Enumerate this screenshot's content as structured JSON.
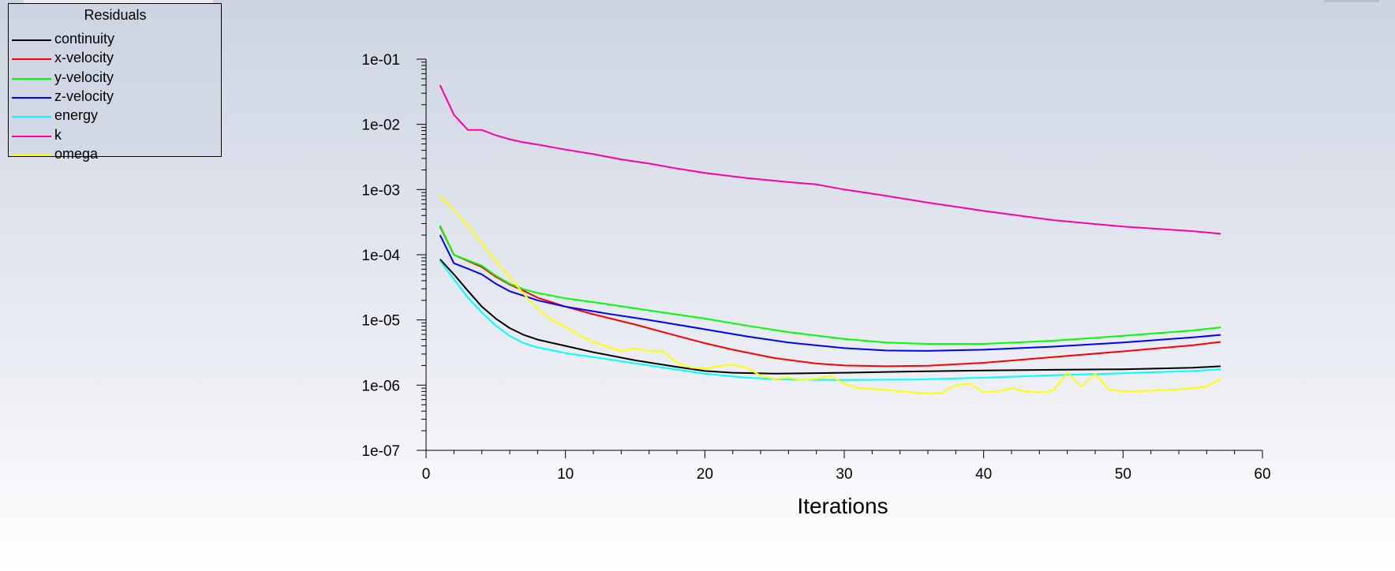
{
  "window": {
    "title": "Residuals"
  },
  "legend": {
    "title": "Residuals",
    "items": [
      {
        "label": "continuity",
        "color": "#000000"
      },
      {
        "label": "x-velocity",
        "color": "#ff0000"
      },
      {
        "label": "y-velocity",
        "color": "#00ff00"
      },
      {
        "label": "z-velocity",
        "color": "#0000ff"
      },
      {
        "label": "energy",
        "color": "#00ffff"
      },
      {
        "label": "k",
        "color": "#ff00a0"
      },
      {
        "label": "omega",
        "color": "#ffff00"
      }
    ]
  },
  "chart_data": {
    "type": "line",
    "title": "",
    "xlabel": "Iterations",
    "ylabel": "",
    "xlim": [
      0,
      60
    ],
    "ylim": [
      1e-07,
      0.1
    ],
    "yscale": "log",
    "grid": false,
    "legend_position": "top-left",
    "x_ticks": [
      0,
      10,
      20,
      30,
      40,
      50,
      60
    ],
    "x_tick_labels": [
      "0",
      "10",
      "20",
      "30",
      "40",
      "50",
      "60"
    ],
    "y_ticks": [
      1e-07,
      1e-06,
      1e-05,
      0.0001,
      0.001,
      0.01,
      0.1
    ],
    "y_tick_labels": [
      "1e-07",
      "1e-06",
      "1e-05",
      "1e-04",
      "1e-03",
      "1e-02",
      "1e-01"
    ],
    "series": [
      {
        "name": "continuity",
        "color": "#000000",
        "points": [
          [
            1,
            8.5e-05
          ],
          [
            2,
            5e-05
          ],
          [
            3,
            2.8e-05
          ],
          [
            4,
            1.6e-05
          ],
          [
            5,
            1.05e-05
          ],
          [
            6,
            7.5e-06
          ],
          [
            7,
            5.9e-06
          ],
          [
            8,
            5e-06
          ],
          [
            10,
            4e-06
          ],
          [
            12,
            3.2e-06
          ],
          [
            15,
            2.4e-06
          ],
          [
            18,
            1.9e-06
          ],
          [
            20,
            1.65e-06
          ],
          [
            22,
            1.55e-06
          ],
          [
            25,
            1.5e-06
          ],
          [
            30,
            1.55e-06
          ],
          [
            35,
            1.62e-06
          ],
          [
            40,
            1.68e-06
          ],
          [
            45,
            1.72e-06
          ],
          [
            50,
            1.75e-06
          ],
          [
            55,
            1.85e-06
          ],
          [
            57,
            1.95e-06
          ]
        ]
      },
      {
        "name": "x-velocity",
        "color": "#ff0000",
        "points": [
          [
            1,
            0.00027
          ],
          [
            2,
            0.0001
          ],
          [
            3,
            8e-05
          ],
          [
            4,
            6.5e-05
          ],
          [
            5,
            4.6e-05
          ],
          [
            6,
            3.5e-05
          ],
          [
            7,
            2.8e-05
          ],
          [
            8,
            2.2e-05
          ],
          [
            10,
            1.6e-05
          ],
          [
            12,
            1.22e-05
          ],
          [
            15,
            8.5e-06
          ],
          [
            18,
            5.7e-06
          ],
          [
            20,
            4.4e-06
          ],
          [
            22,
            3.5e-06
          ],
          [
            25,
            2.6e-06
          ],
          [
            28,
            2.15e-06
          ],
          [
            30,
            2e-06
          ],
          [
            33,
            1.95e-06
          ],
          [
            36,
            1.98e-06
          ],
          [
            40,
            2.2e-06
          ],
          [
            45,
            2.7e-06
          ],
          [
            50,
            3.3e-06
          ],
          [
            55,
            4.1e-06
          ],
          [
            57,
            4.6e-06
          ]
        ]
      },
      {
        "name": "y-velocity",
        "color": "#00ff00",
        "points": [
          [
            1,
            0.00028
          ],
          [
            2,
            0.0001
          ],
          [
            3,
            8.2e-05
          ],
          [
            4,
            6.8e-05
          ],
          [
            5,
            4.8e-05
          ],
          [
            6,
            3.6e-05
          ],
          [
            7,
            2.95e-05
          ],
          [
            8,
            2.6e-05
          ],
          [
            10,
            2.15e-05
          ],
          [
            13,
            1.75e-05
          ],
          [
            16,
            1.4e-05
          ],
          [
            20,
            1.05e-05
          ],
          [
            23,
            8.2e-06
          ],
          [
            26,
            6.5e-06
          ],
          [
            30,
            5.1e-06
          ],
          [
            33,
            4.5e-06
          ],
          [
            36,
            4.3e-06
          ],
          [
            40,
            4.3e-06
          ],
          [
            45,
            4.8e-06
          ],
          [
            50,
            5.7e-06
          ],
          [
            55,
            6.9e-06
          ],
          [
            57,
            7.7e-06
          ]
        ]
      },
      {
        "name": "z-velocity",
        "color": "#0000ff",
        "points": [
          [
            1,
            0.0002
          ],
          [
            2,
            7.4e-05
          ],
          [
            3,
            6.1e-05
          ],
          [
            4,
            5e-05
          ],
          [
            5,
            3.6e-05
          ],
          [
            6,
            2.75e-05
          ],
          [
            7,
            2.35e-05
          ],
          [
            8,
            2e-05
          ],
          [
            10,
            1.6e-05
          ],
          [
            13,
            1.25e-05
          ],
          [
            16,
            1e-05
          ],
          [
            20,
            7.2e-06
          ],
          [
            23,
            5.6e-06
          ],
          [
            26,
            4.5e-06
          ],
          [
            30,
            3.7e-06
          ],
          [
            33,
            3.4e-06
          ],
          [
            36,
            3.35e-06
          ],
          [
            40,
            3.5e-06
          ],
          [
            45,
            3.9e-06
          ],
          [
            50,
            4.5e-06
          ],
          [
            55,
            5.4e-06
          ],
          [
            57,
            5.9e-06
          ]
        ]
      },
      {
        "name": "energy",
        "color": "#00ffff",
        "points": [
          [
            1,
            8e-05
          ],
          [
            2,
            4.2e-05
          ],
          [
            3,
            2.2e-05
          ],
          [
            4,
            1.3e-05
          ],
          [
            5,
            8.2e-06
          ],
          [
            6,
            5.7e-06
          ],
          [
            7,
            4.4e-06
          ],
          [
            8,
            3.8e-06
          ],
          [
            10,
            3.1e-06
          ],
          [
            13,
            2.5e-06
          ],
          [
            16,
            2e-06
          ],
          [
            20,
            1.5e-06
          ],
          [
            23,
            1.3e-06
          ],
          [
            26,
            1.22e-06
          ],
          [
            30,
            1.2e-06
          ],
          [
            35,
            1.22e-06
          ],
          [
            40,
            1.3e-06
          ],
          [
            45,
            1.42e-06
          ],
          [
            50,
            1.52e-06
          ],
          [
            55,
            1.65e-06
          ],
          [
            57,
            1.75e-06
          ]
        ]
      },
      {
        "name": "k",
        "color": "#ff00a0",
        "points": [
          [
            1,
            0.04
          ],
          [
            2,
            0.014
          ],
          [
            3,
            0.0082
          ],
          [
            4,
            0.0082
          ],
          [
            5,
            0.0068
          ],
          [
            6,
            0.0059
          ],
          [
            7,
            0.0053
          ],
          [
            8,
            0.0049
          ],
          [
            10,
            0.0041
          ],
          [
            12,
            0.0035
          ],
          [
            14,
            0.0029
          ],
          [
            16,
            0.0025
          ],
          [
            18,
            0.0021
          ],
          [
            20,
            0.0018
          ],
          [
            23,
            0.0015
          ],
          [
            26,
            0.0013
          ],
          [
            28,
            0.0012
          ],
          [
            30,
            0.001
          ],
          [
            33,
            0.0008
          ],
          [
            36,
            0.00063
          ],
          [
            40,
            0.00047
          ],
          [
            45,
            0.00034
          ],
          [
            50,
            0.00027
          ],
          [
            55,
            0.00023
          ],
          [
            57,
            0.00021
          ]
        ]
      },
      {
        "name": "omega",
        "color": "#ffff00",
        "points": [
          [
            1,
            0.0008
          ],
          [
            3,
            0.00028
          ],
          [
            5,
            8e-05
          ],
          [
            6,
            4.5e-05
          ],
          [
            7,
            2.5e-05
          ],
          [
            8,
            1.5e-05
          ],
          [
            9,
            1e-05
          ],
          [
            10,
            7.8e-06
          ],
          [
            11,
            5.8e-06
          ],
          [
            12,
            4.6e-06
          ],
          [
            13,
            3.9e-06
          ],
          [
            14,
            3.3e-06
          ],
          [
            15,
            3.7e-06
          ],
          [
            16,
            3.3e-06
          ],
          [
            17,
            3.3e-06
          ],
          [
            18,
            2.2e-06
          ],
          [
            19,
            1.85e-06
          ],
          [
            20,
            1.8e-06
          ],
          [
            21,
            1.95e-06
          ],
          [
            22,
            2.05e-06
          ],
          [
            23,
            1.85e-06
          ],
          [
            24,
            1.4e-06
          ],
          [
            25,
            1.25e-06
          ],
          [
            26,
            1.3e-06
          ],
          [
            27,
            1.2e-06
          ],
          [
            28,
            1.25e-06
          ],
          [
            29,
            1.4e-06
          ],
          [
            30,
            1.05e-06
          ],
          [
            31,
            9e-07
          ],
          [
            33,
            8.5e-07
          ],
          [
            34,
            8e-07
          ],
          [
            35,
            7.7e-07
          ],
          [
            36,
            7.5e-07
          ],
          [
            37,
            7.6e-07
          ],
          [
            38,
            1e-06
          ],
          [
            39,
            1.05e-06
          ],
          [
            40,
            7.8e-07
          ],
          [
            41,
            8e-07
          ],
          [
            42,
            9e-07
          ],
          [
            43,
            8e-07
          ],
          [
            44,
            7.7e-07
          ],
          [
            45,
            8.3e-07
          ],
          [
            46,
            1.55e-06
          ],
          [
            47,
            9.5e-07
          ],
          [
            48,
            1.5e-06
          ],
          [
            49,
            8.5e-07
          ],
          [
            50,
            8e-07
          ],
          [
            52,
            8.2e-07
          ],
          [
            54,
            8.6e-07
          ],
          [
            56,
            9.5e-07
          ],
          [
            57,
            1.25e-06
          ]
        ]
      }
    ]
  }
}
